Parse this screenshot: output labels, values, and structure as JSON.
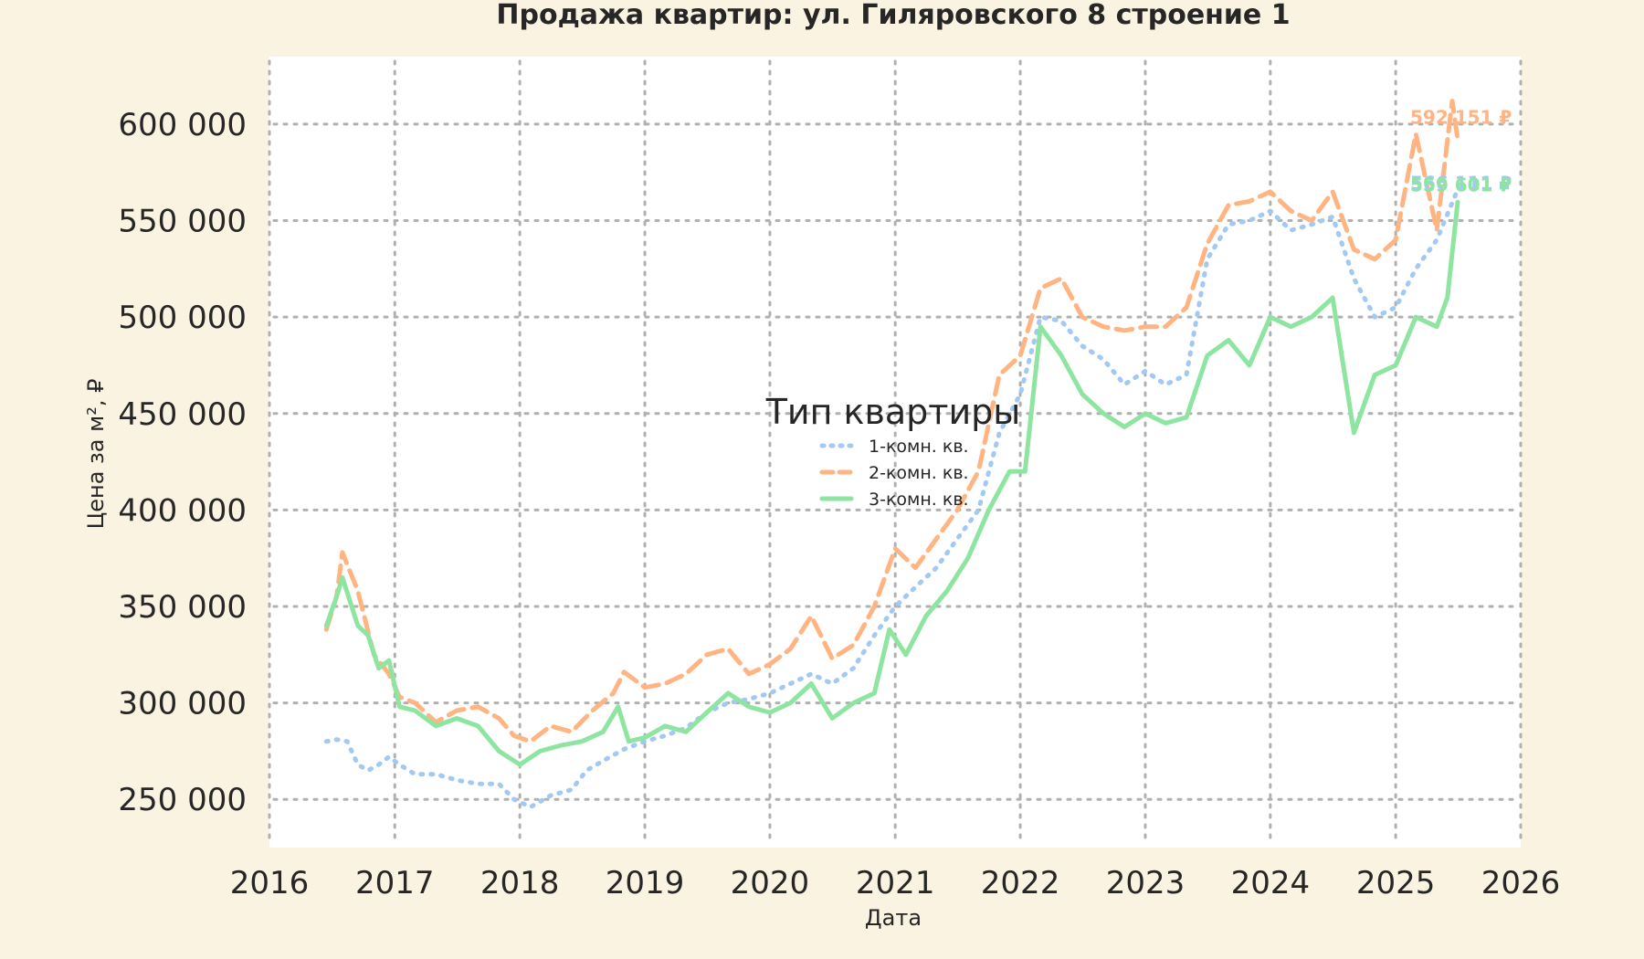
{
  "chart_data": {
    "type": "line",
    "title": "Продажа квартир: ул. Гиляровского 8 строение 1",
    "xlabel": "Дата",
    "ylabel": "Цена за м², ₽",
    "xlim": [
      "2016-01-01",
      "2026-01-01"
    ],
    "ylim": [
      225000,
      635000
    ],
    "x_ticks": [
      "2016",
      "2017",
      "2018",
      "2019",
      "2020",
      "2021",
      "2022",
      "2023",
      "2024",
      "2025",
      "2026"
    ],
    "y_ticks": [
      250000,
      300000,
      350000,
      400000,
      450000,
      500000,
      550000,
      600000
    ],
    "y_tick_labels": [
      "250 000",
      "300 000",
      "350 000",
      "400 000",
      "450 000",
      "500 000",
      "550 000",
      "600 000"
    ],
    "grid": true,
    "legend": {
      "title": "Тип квартиры",
      "placement": "center"
    },
    "colors": {
      "background": "#fbf3e2",
      "plot_background": "#ffffff",
      "grid": "#b0b0b0",
      "text": "#262626"
    },
    "series": [
      {
        "name": "1-комн. кв.",
        "color": "#a1c9f4",
        "dash": "dotted",
        "end_label": "566 111 ₽",
        "points": [
          [
            "2016-06-15",
            280000
          ],
          [
            "2016-07-15",
            281000
          ],
          [
            "2016-08-15",
            280000
          ],
          [
            "2016-09-15",
            268000
          ],
          [
            "2016-10-15",
            265000
          ],
          [
            "2016-11-15",
            268000
          ],
          [
            "2016-12-15",
            272000
          ],
          [
            "2017-01-15",
            268000
          ],
          [
            "2017-03-01",
            263000
          ],
          [
            "2017-05-01",
            263000
          ],
          [
            "2017-07-01",
            260000
          ],
          [
            "2017-09-01",
            258000
          ],
          [
            "2017-11-01",
            258000
          ],
          [
            "2017-12-15",
            250000
          ],
          [
            "2018-02-01",
            246000
          ],
          [
            "2018-04-01",
            252000
          ],
          [
            "2018-06-01",
            255000
          ],
          [
            "2018-07-15",
            265000
          ],
          [
            "2018-09-01",
            270000
          ],
          [
            "2018-11-01",
            276000
          ],
          [
            "2019-01-01",
            280000
          ],
          [
            "2019-03-01",
            283000
          ],
          [
            "2019-05-01",
            287000
          ],
          [
            "2019-07-01",
            295000
          ],
          [
            "2019-09-01",
            300000
          ],
          [
            "2019-11-01",
            302000
          ],
          [
            "2020-01-01",
            305000
          ],
          [
            "2020-03-01",
            310000
          ],
          [
            "2020-05-01",
            315000
          ],
          [
            "2020-07-01",
            310000
          ],
          [
            "2020-09-01",
            318000
          ],
          [
            "2020-11-01",
            335000
          ],
          [
            "2021-01-01",
            350000
          ],
          [
            "2021-03-01",
            360000
          ],
          [
            "2021-05-01",
            370000
          ],
          [
            "2021-07-01",
            385000
          ],
          [
            "2021-09-01",
            400000
          ],
          [
            "2021-11-01",
            440000
          ],
          [
            "2022-01-01",
            460000
          ],
          [
            "2022-03-01",
            500000
          ],
          [
            "2022-05-01",
            498000
          ],
          [
            "2022-07-01",
            485000
          ],
          [
            "2022-09-01",
            478000
          ],
          [
            "2022-11-01",
            465000
          ],
          [
            "2023-01-01",
            472000
          ],
          [
            "2023-03-01",
            465000
          ],
          [
            "2023-05-01",
            470000
          ],
          [
            "2023-07-01",
            530000
          ],
          [
            "2023-09-01",
            548000
          ],
          [
            "2023-11-01",
            550000
          ],
          [
            "2024-01-01",
            555000
          ],
          [
            "2024-03-01",
            545000
          ],
          [
            "2024-05-01",
            548000
          ],
          [
            "2024-07-01",
            552000
          ],
          [
            "2024-09-01",
            520000
          ],
          [
            "2024-11-01",
            500000
          ],
          [
            "2025-01-01",
            505000
          ],
          [
            "2025-03-01",
            525000
          ],
          [
            "2025-05-01",
            540000
          ],
          [
            "2025-07-01",
            566111
          ]
        ]
      },
      {
        "name": "2-комн. кв.",
        "color": "#ffb482",
        "dash": "dashed",
        "end_label": "592 151 ₽",
        "points": [
          [
            "2016-06-15",
            338000
          ],
          [
            "2016-07-15",
            355000
          ],
          [
            "2016-08-01",
            378000
          ],
          [
            "2016-09-15",
            358000
          ],
          [
            "2016-11-01",
            325000
          ],
          [
            "2016-12-15",
            315000
          ],
          [
            "2017-01-15",
            303000
          ],
          [
            "2017-03-01",
            300000
          ],
          [
            "2017-05-01",
            290000
          ],
          [
            "2017-07-01",
            296000
          ],
          [
            "2017-09-01",
            298000
          ],
          [
            "2017-11-01",
            292000
          ],
          [
            "2017-12-15",
            283000
          ],
          [
            "2018-02-01",
            280000
          ],
          [
            "2018-04-01",
            288000
          ],
          [
            "2018-06-01",
            285000
          ],
          [
            "2018-08-01",
            296000
          ],
          [
            "2018-10-01",
            305000
          ],
          [
            "2018-11-01",
            316000
          ],
          [
            "2019-01-01",
            308000
          ],
          [
            "2019-03-01",
            310000
          ],
          [
            "2019-05-01",
            315000
          ],
          [
            "2019-07-01",
            325000
          ],
          [
            "2019-09-01",
            328000
          ],
          [
            "2019-11-01",
            315000
          ],
          [
            "2020-01-01",
            320000
          ],
          [
            "2020-03-01",
            328000
          ],
          [
            "2020-05-01",
            345000
          ],
          [
            "2020-07-01",
            323000
          ],
          [
            "2020-09-01",
            330000
          ],
          [
            "2020-11-01",
            350000
          ],
          [
            "2021-01-01",
            380000
          ],
          [
            "2021-03-01",
            370000
          ],
          [
            "2021-05-01",
            385000
          ],
          [
            "2021-07-01",
            400000
          ],
          [
            "2021-09-01",
            420000
          ],
          [
            "2021-11-01",
            470000
          ],
          [
            "2022-01-01",
            480000
          ],
          [
            "2022-03-01",
            515000
          ],
          [
            "2022-05-01",
            520000
          ],
          [
            "2022-07-01",
            500000
          ],
          [
            "2022-09-01",
            495000
          ],
          [
            "2022-11-01",
            493000
          ],
          [
            "2023-01-01",
            495000
          ],
          [
            "2023-03-01",
            495000
          ],
          [
            "2023-05-01",
            505000
          ],
          [
            "2023-07-01",
            538000
          ],
          [
            "2023-09-01",
            558000
          ],
          [
            "2023-11-01",
            560000
          ],
          [
            "2024-01-01",
            565000
          ],
          [
            "2024-03-01",
            555000
          ],
          [
            "2024-05-01",
            550000
          ],
          [
            "2024-07-01",
            565000
          ],
          [
            "2024-09-01",
            535000
          ],
          [
            "2024-11-01",
            530000
          ],
          [
            "2025-01-01",
            540000
          ],
          [
            "2025-03-01",
            595000
          ],
          [
            "2025-05-01",
            545000
          ],
          [
            "2025-06-15",
            612000
          ],
          [
            "2025-07-01",
            592151
          ]
        ]
      },
      {
        "name": "3-комн. кв.",
        "color": "#8de5a1",
        "dash": "solid",
        "end_label": "559 601 ₽",
        "points": [
          [
            "2016-06-15",
            340000
          ],
          [
            "2016-07-15",
            355000
          ],
          [
            "2016-08-01",
            365000
          ],
          [
            "2016-09-15",
            340000
          ],
          [
            "2016-10-15",
            335000
          ],
          [
            "2016-11-15",
            318000
          ],
          [
            "2016-12-15",
            322000
          ],
          [
            "2017-01-15",
            298000
          ],
          [
            "2017-03-01",
            296000
          ],
          [
            "2017-05-01",
            288000
          ],
          [
            "2017-07-01",
            292000
          ],
          [
            "2017-09-01",
            288000
          ],
          [
            "2017-11-01",
            275000
          ],
          [
            "2018-01-01",
            268000
          ],
          [
            "2018-03-01",
            275000
          ],
          [
            "2018-05-01",
            278000
          ],
          [
            "2018-07-01",
            280000
          ],
          [
            "2018-09-01",
            285000
          ],
          [
            "2018-10-15",
            298000
          ],
          [
            "2018-11-15",
            280000
          ],
          [
            "2019-01-01",
            282000
          ],
          [
            "2019-03-01",
            288000
          ],
          [
            "2019-05-01",
            285000
          ],
          [
            "2019-07-01",
            295000
          ],
          [
            "2019-09-01",
            305000
          ],
          [
            "2019-11-01",
            298000
          ],
          [
            "2020-01-01",
            295000
          ],
          [
            "2020-03-01",
            300000
          ],
          [
            "2020-05-01",
            310000
          ],
          [
            "2020-07-01",
            292000
          ],
          [
            "2020-09-01",
            300000
          ],
          [
            "2020-11-01",
            305000
          ],
          [
            "2020-12-15",
            338000
          ],
          [
            "2021-02-01",
            325000
          ],
          [
            "2021-04-01",
            345000
          ],
          [
            "2021-06-01",
            358000
          ],
          [
            "2021-08-01",
            375000
          ],
          [
            "2021-10-01",
            400000
          ],
          [
            "2021-12-01",
            420000
          ],
          [
            "2022-01-15",
            420000
          ],
          [
            "2022-03-01",
            495000
          ],
          [
            "2022-05-01",
            480000
          ],
          [
            "2022-07-01",
            460000
          ],
          [
            "2022-09-01",
            450000
          ],
          [
            "2022-11-01",
            443000
          ],
          [
            "2023-01-01",
            450000
          ],
          [
            "2023-03-01",
            445000
          ],
          [
            "2023-05-01",
            448000
          ],
          [
            "2023-07-01",
            480000
          ],
          [
            "2023-09-01",
            488000
          ],
          [
            "2023-11-01",
            475000
          ],
          [
            "2024-01-01",
            500000
          ],
          [
            "2024-03-01",
            495000
          ],
          [
            "2024-05-01",
            500000
          ],
          [
            "2024-07-01",
            510000
          ],
          [
            "2024-09-01",
            440000
          ],
          [
            "2024-11-01",
            470000
          ],
          [
            "2025-01-01",
            475000
          ],
          [
            "2025-03-01",
            500000
          ],
          [
            "2025-05-01",
            495000
          ],
          [
            "2025-06-01",
            510000
          ],
          [
            "2025-07-01",
            559601
          ]
        ]
      }
    ]
  }
}
